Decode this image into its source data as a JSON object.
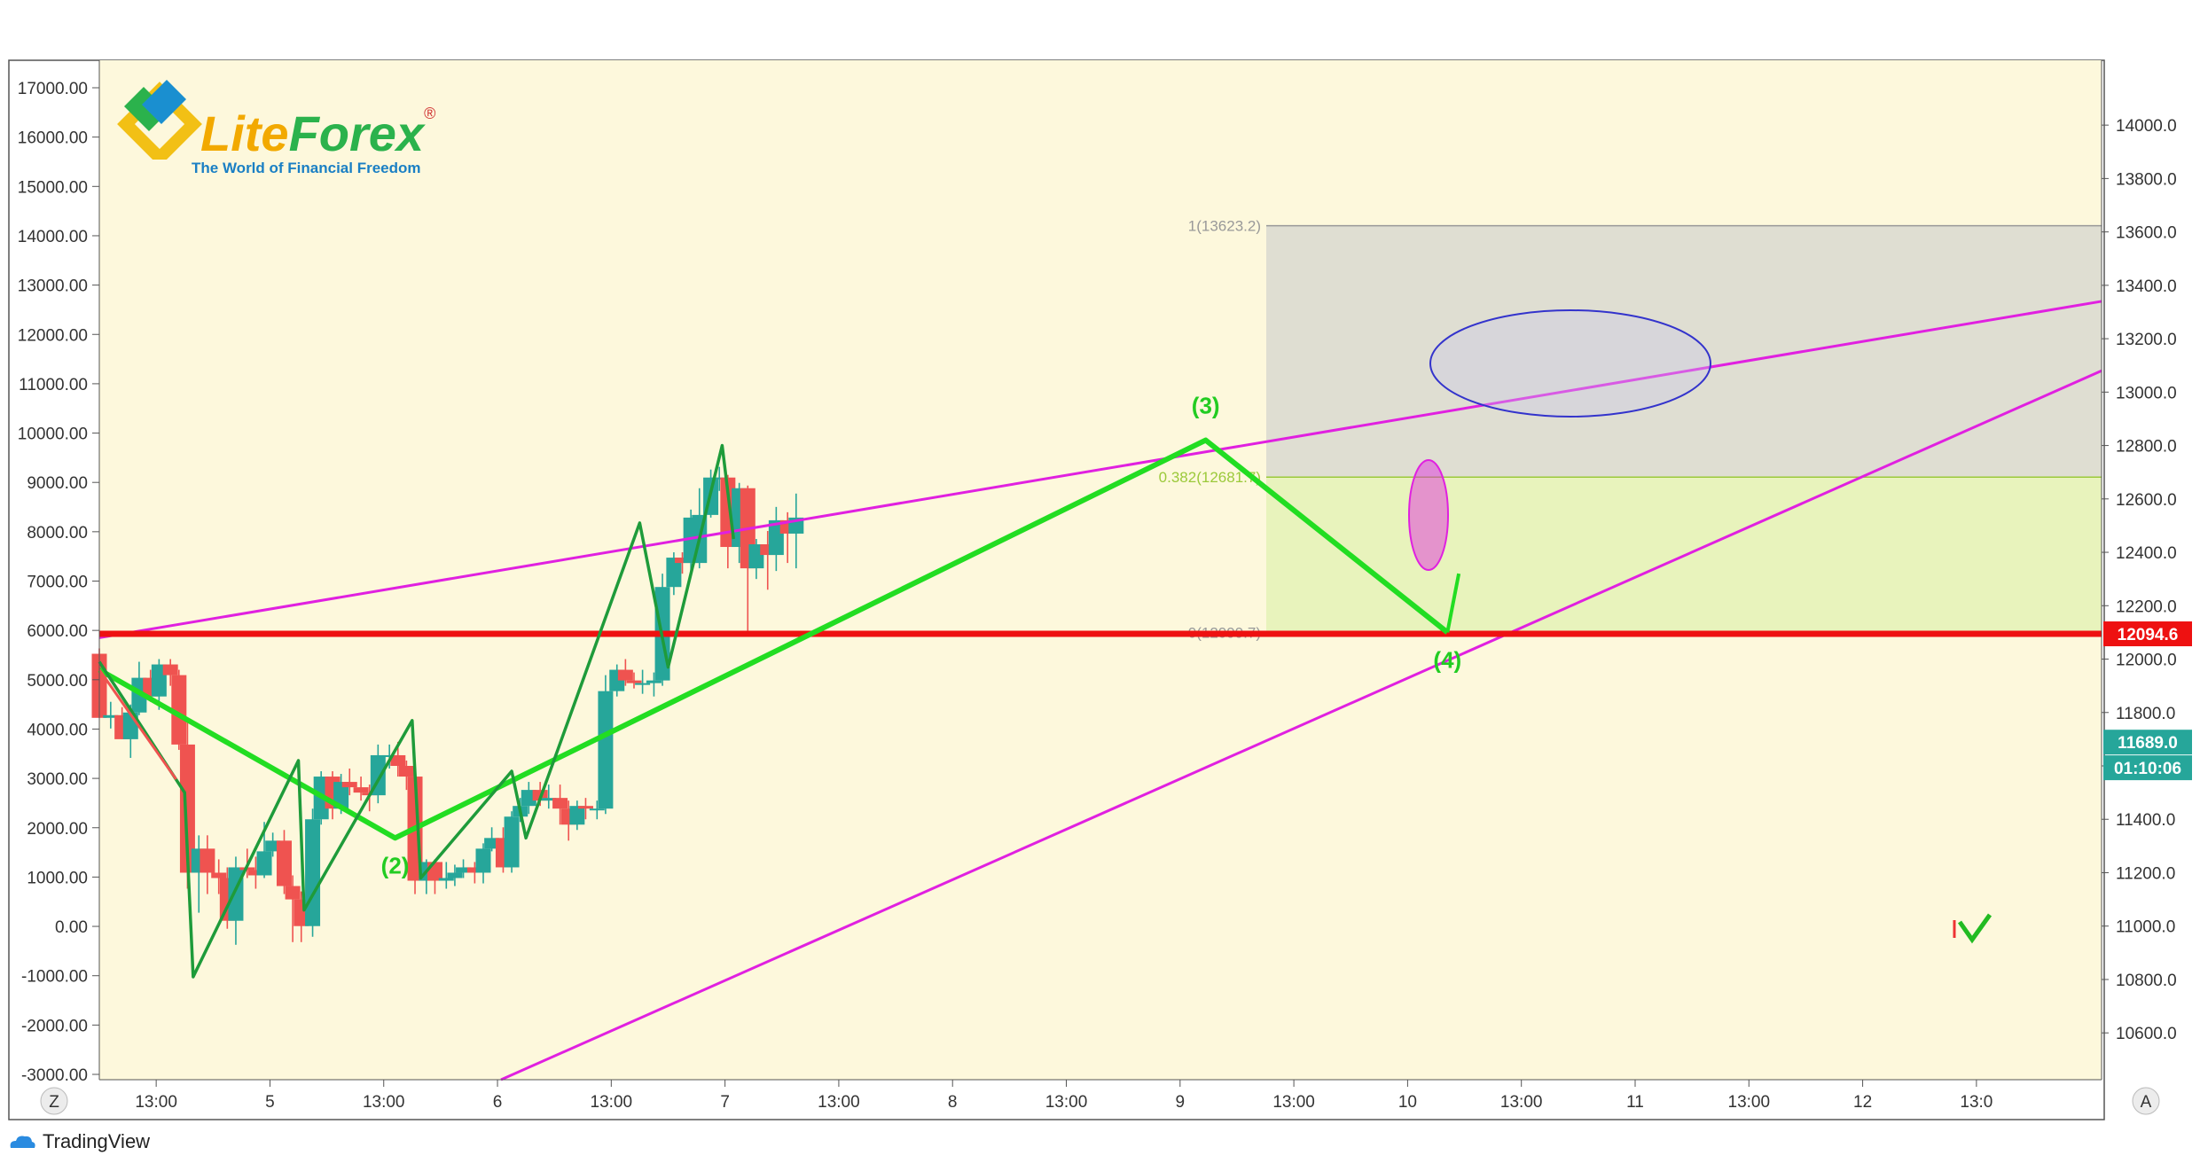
{
  "logo": {
    "word1": "Lite",
    "word2": "Forex",
    "registered": "®",
    "tagline": "The World of Financial Freedom"
  },
  "footer": {
    "brand": "TradingView",
    "icon": "cloud-icon"
  },
  "corner_buttons": {
    "left": "Z",
    "right": "A"
  },
  "colors": {
    "background": "#fdf8dc",
    "bull": "#26a69a",
    "bear": "#ef5350",
    "wave_green": "#22dd22",
    "wave_dark": "#1e9b3a",
    "channel": "#e020e0",
    "support": "#ee1111",
    "fib_upper": "#d9d9d0",
    "fib_lower": "#e6f2b8"
  },
  "chart_data": {
    "type": "candlestick",
    "title": "",
    "x_tick_labels": [
      "13:00",
      "5",
      "13:00",
      "6",
      "13:00",
      "7",
      "13:00",
      "8",
      "13:00",
      "9",
      "13:00",
      "10",
      "13:00",
      "11",
      "13:00",
      "12",
      "13:0"
    ],
    "x_ticks_index": [
      1,
      3,
      5,
      7,
      9,
      11,
      13,
      15,
      17,
      19,
      21,
      23,
      25,
      27,
      29,
      31,
      33
    ],
    "left_axis": {
      "ylim": [
        -3000,
        17000
      ],
      "tick_labels": [
        "17000.00",
        "16000.00",
        "15000.00",
        "14000.00",
        "13000.00",
        "12000.00",
        "11000.00",
        "10000.00",
        "9000.00",
        "8000.00",
        "7000.00",
        "6000.00",
        "5000.00",
        "4000.00",
        "3000.00",
        "2000.00",
        "1000.00",
        "0.00",
        "-1000.00",
        "-2000.00",
        "-3000.00"
      ]
    },
    "right_axis": {
      "ylim": [
        10428,
        14120
      ],
      "tick_labels": [
        "14000.0",
        "13800.0",
        "13600.0",
        "13400.0",
        "13200.0",
        "13000.0",
        "12800.0",
        "12600.0",
        "12400.0",
        "12200.0",
        "12000.0",
        "11800.0",
        "11600.0",
        "11400.0",
        "11200.0",
        "11000.0",
        "10800.0",
        "10600.0"
      ]
    },
    "price_badges": [
      {
        "label": "12094.6",
        "value": 12094.6,
        "color": "#ee1111"
      },
      {
        "label": "11689.0",
        "value": 11689.0,
        "color": "#26a69a"
      },
      {
        "label": "01:10:06",
        "value": 11593,
        "color": "#26a69a"
      }
    ],
    "candles": [
      [
        0.0,
        12020,
        11780,
        12040,
        11780
      ],
      [
        0.2,
        11780,
        11790,
        11840,
        11740
      ],
      [
        0.4,
        11790,
        11700,
        11820,
        11700
      ],
      [
        0.55,
        11700,
        11800,
        11830,
        11630
      ],
      [
        0.7,
        11800,
        11930,
        11990,
        11790
      ],
      [
        0.9,
        11930,
        11860,
        11960,
        11840
      ],
      [
        1.05,
        11860,
        11980,
        12000,
        11810
      ],
      [
        1.25,
        11980,
        11940,
        12000,
        11900
      ],
      [
        1.4,
        11940,
        11680,
        11960,
        11660
      ],
      [
        1.55,
        11680,
        11200,
        11780,
        11140
      ],
      [
        1.75,
        11200,
        11290,
        11340,
        11050
      ],
      [
        1.9,
        11290,
        11200,
        11340,
        11120
      ],
      [
        2.1,
        11200,
        11180,
        11250,
        11120
      ],
      [
        2.25,
        11180,
        11020,
        11220,
        10990
      ],
      [
        2.4,
        11020,
        11220,
        11260,
        10930
      ],
      [
        2.6,
        11220,
        11210,
        11290,
        11180
      ],
      [
        2.75,
        11210,
        11190,
        11260,
        11140
      ],
      [
        2.9,
        11190,
        11280,
        11390,
        11180
      ],
      [
        3.05,
        11280,
        11320,
        11350,
        11260
      ],
      [
        3.25,
        11320,
        11150,
        11360,
        11120
      ],
      [
        3.4,
        11150,
        11100,
        11190,
        10940
      ],
      [
        3.55,
        11100,
        11000,
        11130,
        10940
      ],
      [
        3.75,
        11000,
        11400,
        11440,
        10960
      ],
      [
        3.9,
        11400,
        11560,
        11580,
        11380
      ],
      [
        4.1,
        11560,
        11440,
        11580,
        11400
      ],
      [
        4.25,
        11440,
        11540,
        11570,
        11420
      ],
      [
        4.4,
        11540,
        11520,
        11590,
        11490
      ],
      [
        4.6,
        11520,
        11500,
        11560,
        11470
      ],
      [
        4.75,
        11500,
        11490,
        11530,
        11430
      ],
      [
        4.9,
        11490,
        11640,
        11680,
        11460
      ],
      [
        5.1,
        11640,
        11640,
        11680,
        11590
      ],
      [
        5.25,
        11640,
        11600,
        11690,
        11560
      ],
      [
        5.4,
        11600,
        11560,
        11620,
        11510
      ],
      [
        5.55,
        11560,
        11170,
        11580,
        11120
      ],
      [
        5.75,
        11170,
        11240,
        11250,
        11120
      ],
      [
        5.9,
        11240,
        11170,
        11250,
        11120
      ],
      [
        6.1,
        11170,
        11180,
        11240,
        11140
      ],
      [
        6.25,
        11180,
        11200,
        11230,
        11150
      ],
      [
        6.4,
        11200,
        11220,
        11250,
        11180
      ],
      [
        6.6,
        11220,
        11200,
        11240,
        11160
      ],
      [
        6.75,
        11200,
        11290,
        11310,
        11160
      ],
      [
        6.9,
        11290,
        11330,
        11370,
        11280
      ],
      [
        7.1,
        11330,
        11220,
        11370,
        11200
      ],
      [
        7.25,
        11220,
        11410,
        11430,
        11200
      ],
      [
        7.4,
        11410,
        11450,
        11480,
        11390
      ],
      [
        7.55,
        11450,
        11510,
        11540,
        11420
      ],
      [
        7.75,
        11510,
        11470,
        11540,
        11450
      ],
      [
        7.9,
        11470,
        11480,
        11530,
        11440
      ],
      [
        8.1,
        11480,
        11440,
        11530,
        11380
      ],
      [
        8.25,
        11440,
        11380,
        11470,
        11320
      ],
      [
        8.4,
        11380,
        11450,
        11470,
        11360
      ],
      [
        8.55,
        11450,
        11440,
        11480,
        11400
      ],
      [
        8.75,
        11440,
        11440,
        11470,
        11400
      ],
      [
        8.9,
        11440,
        11880,
        11940,
        11420
      ],
      [
        9.1,
        11880,
        11960,
        11980,
        11860
      ],
      [
        9.25,
        11960,
        11920,
        12000,
        11900
      ],
      [
        9.4,
        11920,
        11910,
        11950,
        11890
      ],
      [
        9.55,
        11910,
        11910,
        11960,
        11870
      ],
      [
        9.75,
        11910,
        11920,
        11950,
        11860
      ],
      [
        9.9,
        11920,
        12270,
        12320,
        11900
      ],
      [
        10.1,
        12270,
        12380,
        12400,
        12240
      ],
      [
        10.25,
        12380,
        12360,
        12400,
        12320
      ],
      [
        10.4,
        12360,
        12530,
        12560,
        12330
      ],
      [
        10.55,
        12360,
        12540,
        12640,
        12340
      ],
      [
        10.75,
        12540,
        12680,
        12710,
        12530
      ],
      [
        10.9,
        12680,
        12680,
        12720,
        12630
      ],
      [
        11.05,
        12680,
        12420,
        12690,
        12340
      ],
      [
        11.25,
        12420,
        12640,
        12660,
        12360
      ],
      [
        11.4,
        12640,
        12340,
        12650,
        12100
      ],
      [
        11.55,
        12340,
        12430,
        12450,
        12300
      ],
      [
        11.75,
        12430,
        12390,
        12480,
        12260
      ],
      [
        11.9,
        12390,
        12520,
        12570,
        12330
      ],
      [
        12.1,
        12520,
        12470,
        12550,
        12360
      ],
      [
        12.25,
        12470,
        12530,
        12620,
        12340
      ]
    ],
    "fib_levels": [
      {
        "label": "1(13623.2)",
        "value": 13623.2
      },
      {
        "label": "0.382(12681.7)",
        "value": 12681.7
      },
      {
        "label": "0(12099.7)",
        "value": 12099.7
      }
    ],
    "waves": [
      {
        "label": "(2)",
        "value": 11330
      },
      {
        "label": "(3)",
        "value": 12820
      },
      {
        "label": "(4)",
        "value": 12100
      }
    ]
  }
}
